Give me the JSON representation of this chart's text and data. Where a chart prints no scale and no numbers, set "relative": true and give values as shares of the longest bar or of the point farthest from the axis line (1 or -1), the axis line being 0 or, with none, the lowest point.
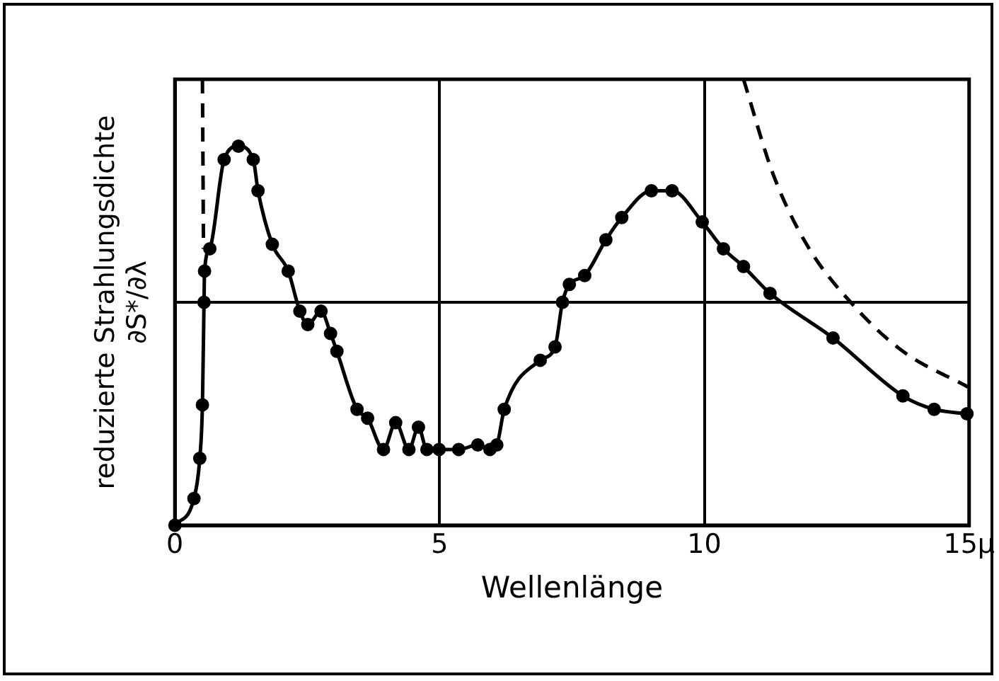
{
  "chart_data": {
    "type": "line",
    "xlabel": "Wellenlänge",
    "ylabel": "reduzierte Strahlungsdichte\n∂S*/∂λ",
    "relative": true,
    "xlim": [
      0,
      15
    ],
    "xticks": [
      0,
      5,
      10,
      {
        "value": 15,
        "label": "15μ"
      }
    ],
    "grid": "x",
    "legend": false,
    "ref_lines": [
      {
        "axis": "y",
        "value": 0.5,
        "color": "#000000"
      }
    ],
    "series": [
      {
        "color": "#000000",
        "marker": "circle",
        "line_style": "solid",
        "x": [
          0,
          0.36,
          0.47,
          0.52,
          0.55,
          0.56,
          0.66,
          0.93,
          1.2,
          1.48,
          1.57,
          1.84,
          2.14,
          2.36,
          2.51,
          2.76,
          2.94,
          3.06,
          3.44,
          3.64,
          3.94,
          4.17,
          4.42,
          4.6,
          4.76,
          4.99,
          5.36,
          5.72,
          5.95,
          6.08,
          6.22,
          6.9,
          7.18,
          7.32,
          7.45,
          7.74,
          8.14,
          8.44,
          9.0,
          9.39,
          9.96,
          10.36,
          10.74,
          11.24,
          12.43,
          13.75,
          14.34,
          14.96
        ],
        "values": [
          0,
          0.06,
          0.15,
          0.27,
          0.5,
          0.57,
          0.62,
          0.82,
          0.85,
          0.82,
          0.75,
          0.63,
          0.57,
          0.48,
          0.45,
          0.48,
          0.43,
          0.39,
          0.26,
          0.24,
          0.17,
          0.23,
          0.17,
          0.22,
          0.17,
          0.17,
          0.17,
          0.18,
          0.17,
          0.18,
          0.26,
          0.37,
          0.4,
          0.5,
          0.54,
          0.56,
          0.64,
          0.69,
          0.75,
          0.75,
          0.68,
          0.62,
          0.58,
          0.52,
          0.42,
          0.29,
          0.26,
          0.25
        ]
      },
      {
        "color": "#000000",
        "marker": "none",
        "line_style": "dashed",
        "x": [
          0.52,
          0.54
        ],
        "values": [
          1,
          0.62
        ]
      },
      {
        "color": "#000000",
        "marker": "none",
        "line_style": "dashed",
        "x": [
          10.74,
          11.29,
          11.93,
          12.84,
          13.75,
          14.98
        ],
        "values": [
          1,
          0.79,
          0.63,
          0.49,
          0.39,
          0.31
        ]
      }
    ]
  }
}
